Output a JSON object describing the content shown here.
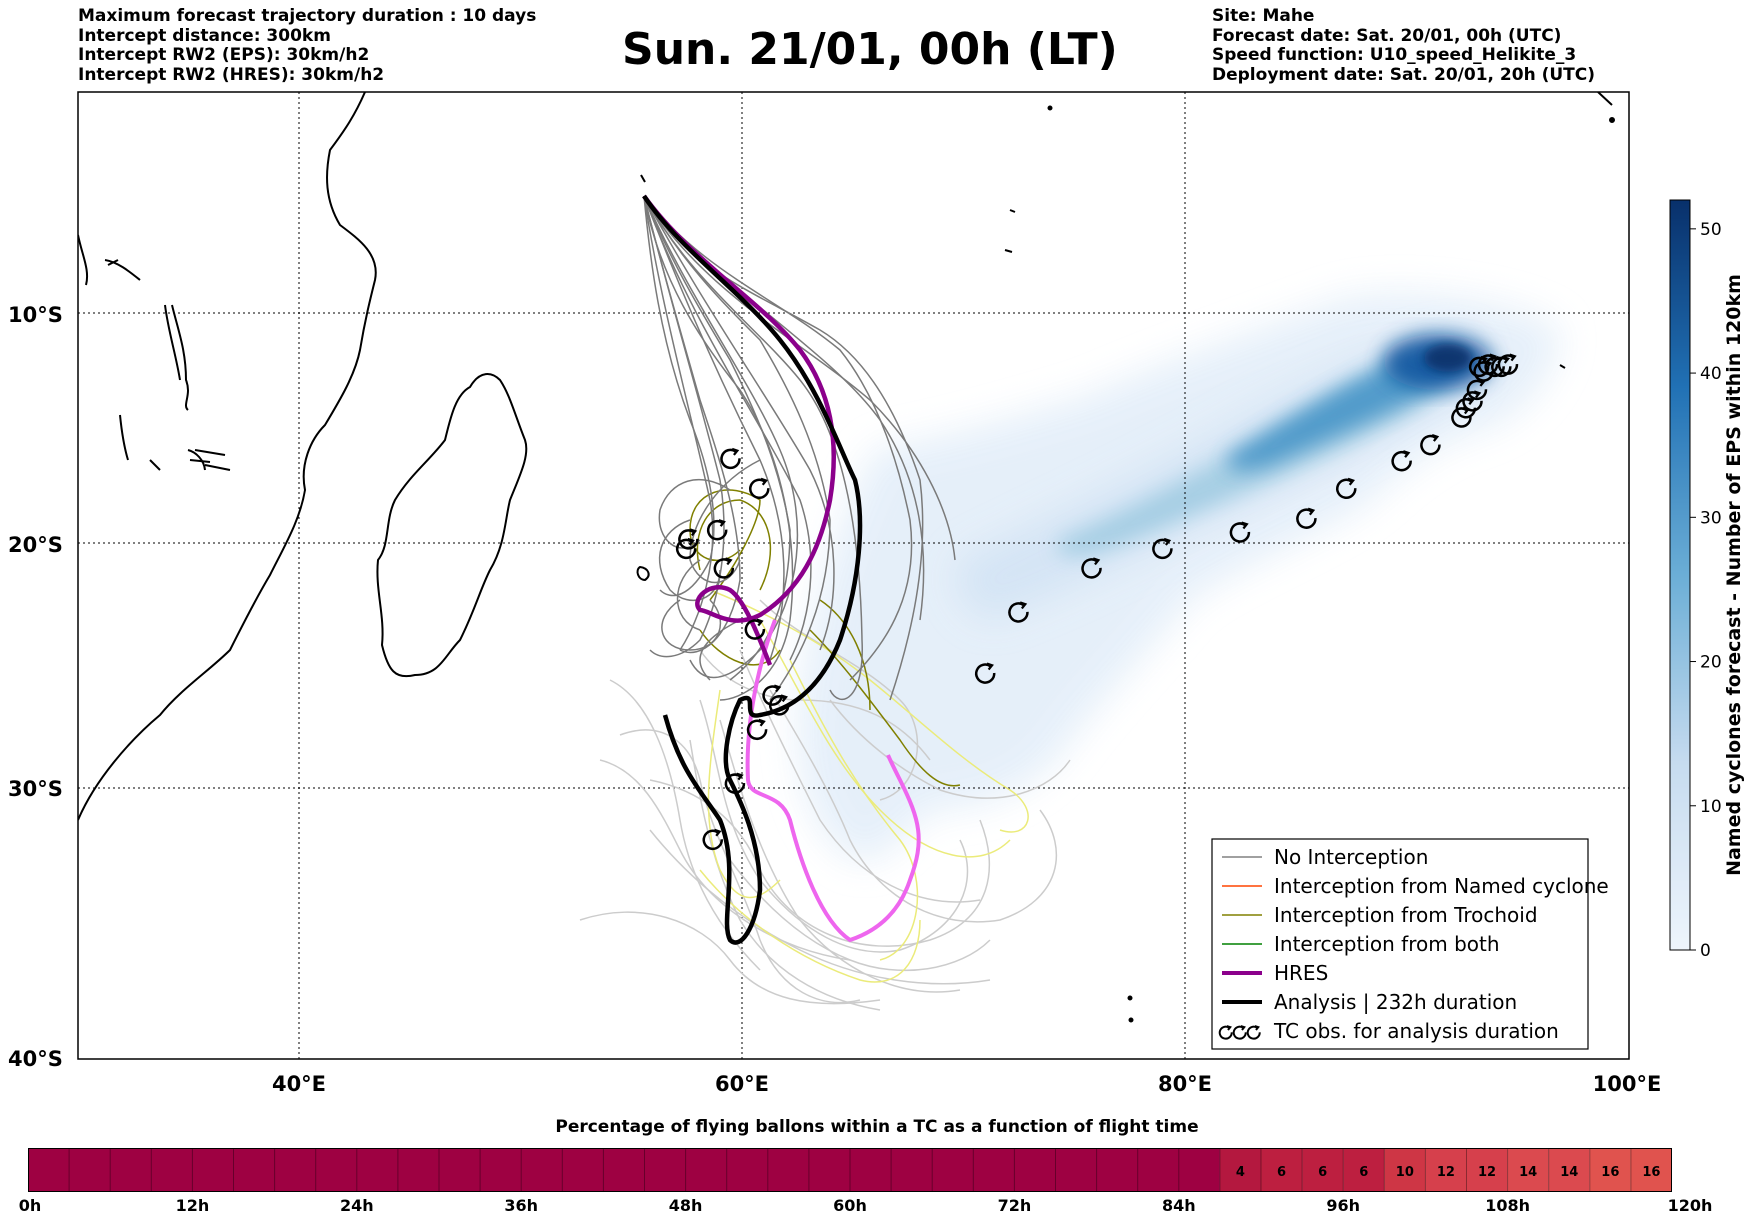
{
  "header": {
    "left": [
      "Maximum forecast trajectory duration : 10 days",
      "Intercept distance: 300km",
      "Intercept RW2 (EPS):  30km/h2",
      "Intercept RW2 (HRES): 30km/h2"
    ],
    "title": "Sun. 21/01, 00h (LT)",
    "right": [
      "Site: Mahe",
      "Forecast date: Sat. 20/01, 00h (UTC)",
      "Speed function: U10_speed_Helikite_3",
      "Deployment date: Sat. 20/01, 20h (UTC)"
    ]
  },
  "map": {
    "lat_labels": [
      "10°S",
      "20°S",
      "30°S",
      "40°S"
    ],
    "lon_labels": [
      "40°E",
      "60°E",
      "80°E",
      "100°E"
    ],
    "tc_track_markers": [
      {
        "lon": 94.6,
        "lat": 12.2
      },
      {
        "lon": 94.3,
        "lat": 12.3
      },
      {
        "lon": 94.0,
        "lat": 12.3
      },
      {
        "lon": 93.7,
        "lat": 12.2
      },
      {
        "lon": 93.3,
        "lat": 12.3
      },
      {
        "lon": 93.5,
        "lat": 12.5
      },
      {
        "lon": 93.2,
        "lat": 13.3
      },
      {
        "lon": 93.0,
        "lat": 13.8
      },
      {
        "lon": 92.7,
        "lat": 14.1
      },
      {
        "lon": 92.5,
        "lat": 14.5
      },
      {
        "lon": 91.1,
        "lat": 15.7
      },
      {
        "lon": 89.8,
        "lat": 16.4
      },
      {
        "lon": 87.3,
        "lat": 17.6
      },
      {
        "lon": 85.5,
        "lat": 18.9
      },
      {
        "lon": 82.5,
        "lat": 19.5
      },
      {
        "lon": 79.0,
        "lat": 20.2
      },
      {
        "lon": 75.8,
        "lat": 21.0
      },
      {
        "lon": 72.5,
        "lat": 22.8
      },
      {
        "lon": 71.0,
        "lat": 25.3
      }
    ],
    "tc_obs_markers_west": [
      {
        "lon": 59.5,
        "lat": 16.3
      },
      {
        "lon": 60.8,
        "lat": 17.6
      },
      {
        "lon": 58.9,
        "lat": 19.4
      },
      {
        "lon": 57.6,
        "lat": 19.8
      },
      {
        "lon": 57.5,
        "lat": 20.2
      },
      {
        "lon": 59.2,
        "lat": 21.0
      },
      {
        "lon": 60.6,
        "lat": 23.5
      },
      {
        "lon": 61.4,
        "lat": 26.2
      },
      {
        "lon": 61.7,
        "lat": 26.6
      },
      {
        "lon": 60.7,
        "lat": 27.6
      },
      {
        "lon": 59.7,
        "lat": 29.8
      },
      {
        "lon": 58.7,
        "lat": 32.1
      }
    ]
  },
  "legend": {
    "items": [
      {
        "label": "No Interception",
        "color": "#808080",
        "width": 1.5
      },
      {
        "label": "Interception from Named cyclone",
        "color": "#ff4500",
        "width": 1.5
      },
      {
        "label": "Interception from Trochoid",
        "color": "#808000",
        "width": 1.5
      },
      {
        "label": "Interception from both",
        "color": "#008000",
        "width": 1.5
      },
      {
        "label": "HRES",
        "color": "#8b008b",
        "width": 4
      },
      {
        "label": "Analysis | 232h duration",
        "color": "#000000",
        "width": 4
      }
    ],
    "tc_obs_label": "TC obs. for analysis duration"
  },
  "vertical_colorbar": {
    "label": "Named cyclones forecast - Number of EPS within 120km",
    "ticks": [
      "0",
      "10",
      "20",
      "30",
      "40",
      "50"
    ],
    "max": 52,
    "color_low": "#e3eef9",
    "color_high": "#08306b"
  },
  "bottom_colorbar": {
    "title": "Percentage of flying ballons within a TC as a function of flight time",
    "ticks": [
      "0h",
      "12h",
      "24h",
      "36h",
      "48h",
      "60h",
      "72h",
      "84h",
      "96h",
      "108h",
      "120h"
    ],
    "zero_color": "#9e0142",
    "cells": [
      {
        "label": "4",
        "color": "#b4183f"
      },
      {
        "label": "6",
        "color": "#bd1f40"
      },
      {
        "label": "6",
        "color": "#bd1f40"
      },
      {
        "label": "6",
        "color": "#bd1f40"
      },
      {
        "label": "10",
        "color": "#ce3645"
      },
      {
        "label": "12",
        "color": "#d6404c"
      },
      {
        "label": "12",
        "color": "#d6404c"
      },
      {
        "label": "14",
        "color": "#db4a4f"
      },
      {
        "label": "14",
        "color": "#db4a4f"
      },
      {
        "label": "16",
        "color": "#e0534e"
      },
      {
        "label": "16",
        "color": "#e0534e"
      }
    ]
  }
}
